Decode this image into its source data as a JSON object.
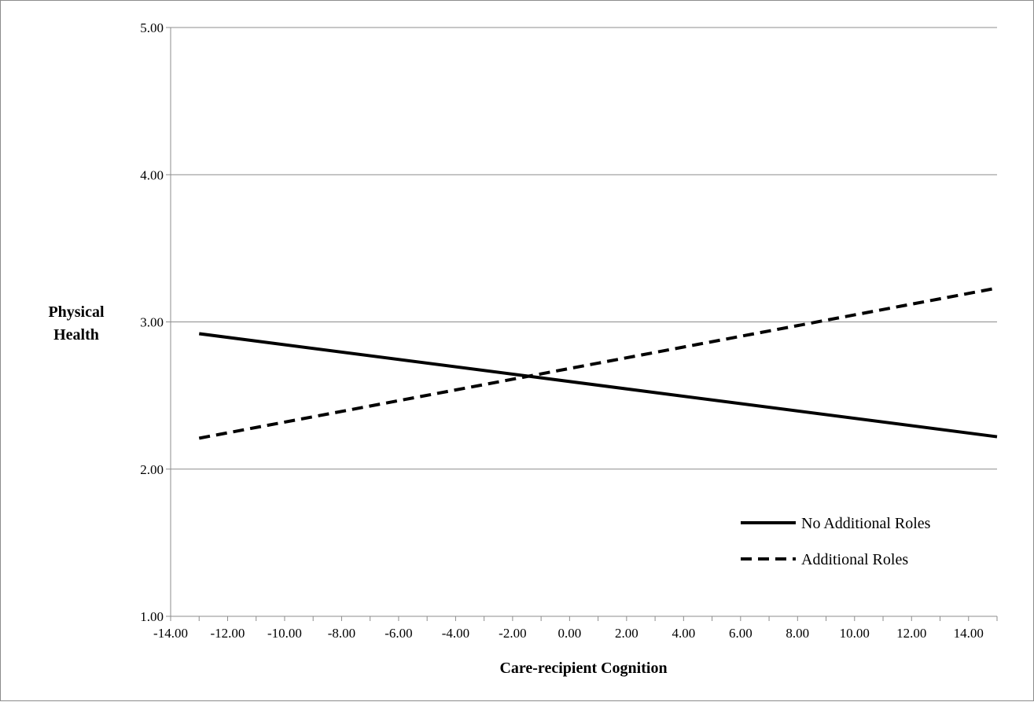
{
  "chart_data": {
    "type": "line",
    "title": "",
    "xlabel": "Care-recipient Cognition",
    "ylabel_lines": [
      "Physical",
      "Health"
    ],
    "xlim": [
      -14,
      15
    ],
    "ylim": [
      1,
      5
    ],
    "x_ticks": [
      -14,
      -12,
      -10,
      -8,
      -6,
      -4,
      -2,
      0,
      2,
      4,
      6,
      8,
      10,
      12,
      14
    ],
    "x_tick_labels": [
      "-14.00",
      "-12.00",
      "-10.00",
      "-8.00",
      "-6.00",
      "-4.00",
      "-2.00",
      "0.00",
      "2.00",
      "4.00",
      "6.00",
      "8.00",
      "10.00",
      "12.00",
      "14.00"
    ],
    "y_ticks": [
      1,
      2,
      3,
      4,
      5
    ],
    "y_tick_labels": [
      "1.00",
      "2.00",
      "3.00",
      "4.00",
      "5.00"
    ],
    "grid": "horizontal",
    "legend_position": "bottom-right",
    "series": [
      {
        "name": "No Additional Roles",
        "style": "solid",
        "color": "#000000",
        "x": [
          -13,
          15
        ],
        "y": [
          2.92,
          2.22
        ]
      },
      {
        "name": "Additional Roles",
        "style": "dashed",
        "color": "#000000",
        "x": [
          -13,
          15
        ],
        "y": [
          2.21,
          3.23
        ]
      }
    ]
  }
}
